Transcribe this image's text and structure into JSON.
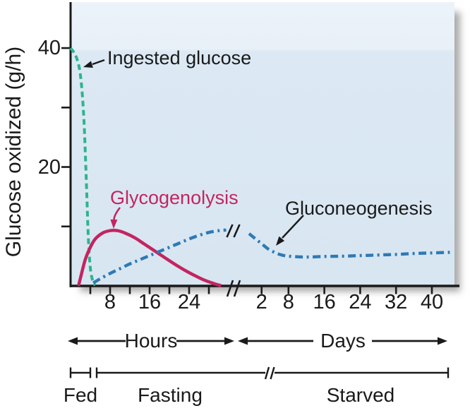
{
  "chart_data": {
    "type": "line",
    "title": "",
    "ylabel": "Glucose oxidized (g/h)",
    "ylim": [
      0,
      45
    ],
    "y_axis": {
      "tick_values": [
        10,
        20,
        30,
        40
      ],
      "labeled_ticks": [
        20,
        40
      ]
    },
    "x_axis": {
      "axis_break_between_segments": true,
      "segments": [
        {
          "name": "Hours",
          "unit": "hours",
          "tick_values": [
            4,
            8,
            12,
            16,
            20,
            24,
            28
          ],
          "labeled_ticks": [
            8,
            16,
            24
          ]
        },
        {
          "name": "Days",
          "unit": "days",
          "tick_values": [
            2,
            8,
            16,
            24,
            32,
            40
          ],
          "labeled_ticks": [
            2,
            8,
            16,
            24,
            32,
            40
          ]
        }
      ]
    },
    "series": [
      {
        "name": "Ingested glucose",
        "style": "dashed",
        "color": "#2db48e",
        "hours_points": [
          [
            0,
            40
          ],
          [
            1,
            38.8
          ],
          [
            1.8,
            36.5
          ],
          [
            2.3,
            33
          ],
          [
            2.7,
            28
          ],
          [
            3,
            22
          ],
          [
            3.3,
            15
          ],
          [
            3.6,
            8
          ],
          [
            4,
            3
          ],
          [
            4.5,
            0.8
          ],
          [
            5,
            0.1
          ]
        ],
        "days_points": []
      },
      {
        "name": "Glycogenolysis",
        "style": "solid",
        "color": "#c32560",
        "hours_points": [
          [
            1.6,
            0
          ],
          [
            2.2,
            2
          ],
          [
            3,
            4.5
          ],
          [
            4,
            6.5
          ],
          [
            5,
            7.9
          ],
          [
            6.5,
            8.9
          ],
          [
            8,
            9.3
          ],
          [
            9.5,
            9.3
          ],
          [
            11,
            8.9
          ],
          [
            13,
            8.1
          ],
          [
            15,
            7
          ],
          [
            17,
            5.9
          ],
          [
            19,
            4.8
          ],
          [
            21,
            3.7
          ],
          [
            23,
            2.7
          ],
          [
            25,
            1.8
          ],
          [
            27,
            1
          ],
          [
            29,
            0.4
          ],
          [
            30.5,
            0.05
          ]
        ],
        "days_points": []
      },
      {
        "name": "Gluconeogenesis",
        "style": "dash-dot",
        "color": "#2e7ab5",
        "hours_points": [
          [
            4.6,
            0.5
          ],
          [
            6,
            1.2
          ],
          [
            8,
            2.1
          ],
          [
            10,
            2.9
          ],
          [
            12,
            3.7
          ],
          [
            14,
            4.4
          ],
          [
            16,
            5.1
          ],
          [
            18,
            5.8
          ],
          [
            20,
            6.5
          ],
          [
            22,
            7.2
          ],
          [
            24,
            7.9
          ],
          [
            26,
            8.5
          ],
          [
            28,
            9
          ],
          [
            30,
            9.3
          ],
          [
            31.5,
            9.4
          ]
        ],
        "days_points": [
          [
            -0.8,
            8.8
          ],
          [
            0.5,
            8
          ],
          [
            2,
            7.1
          ],
          [
            3.5,
            6.2
          ],
          [
            5,
            5.6
          ],
          [
            6.5,
            5.2
          ],
          [
            8,
            5
          ],
          [
            10,
            4.9
          ],
          [
            12,
            4.85
          ],
          [
            16,
            4.95
          ],
          [
            20,
            5
          ],
          [
            24,
            5.1
          ],
          [
            28,
            5.2
          ],
          [
            32,
            5.3
          ],
          [
            36,
            5.45
          ],
          [
            40,
            5.55
          ],
          [
            44,
            5.65
          ]
        ]
      }
    ],
    "legend_position": "inline-annotations",
    "grid": false
  },
  "labels": {
    "y_axis": "Glucose oxidized (g/h)",
    "hours": "Hours",
    "days": "Days",
    "fed": "Fed",
    "fasting": "Fasting",
    "starved": "Starved"
  },
  "colors": {
    "plot_bg": "#dce9f4",
    "plot_bg_top_band": "#ebf2fa",
    "axis": "#1a1a1a",
    "ingested_glucose": "#2db48e",
    "glycogenolysis": "#c32560",
    "gluconeogenesis": "#2e7ab5"
  }
}
